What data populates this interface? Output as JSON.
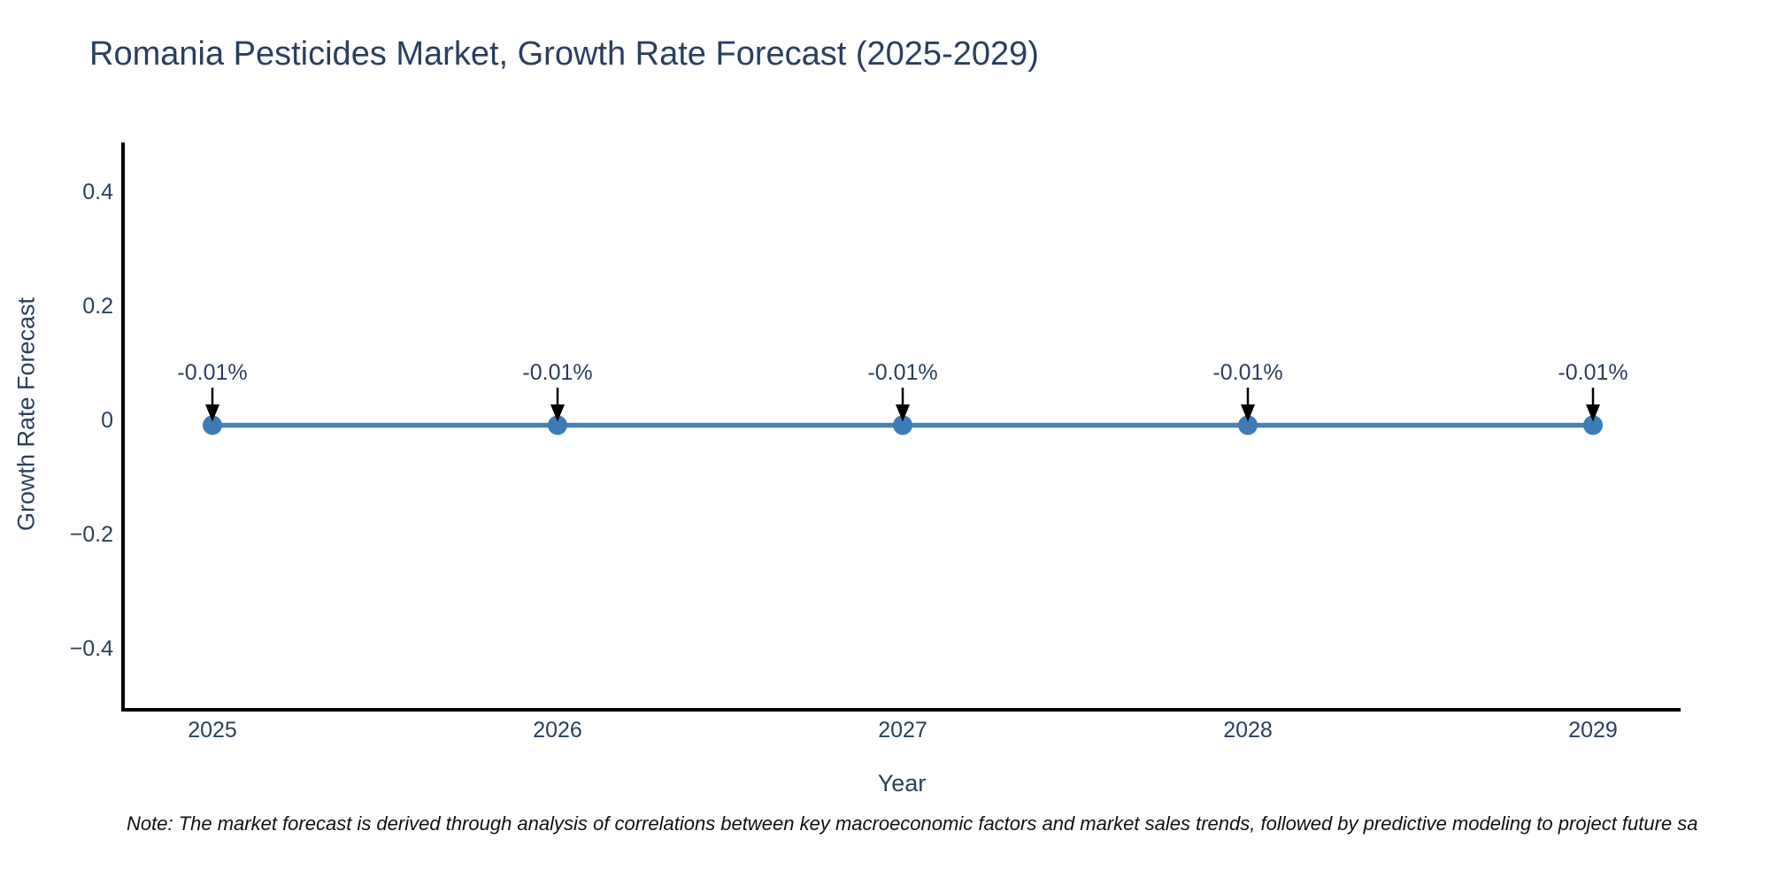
{
  "page": {
    "note": "Note: The market forecast is derived through analysis of correlations between key macroeconomic factors and market sales trends, followed by predictive modeling to project future sa"
  },
  "chart_data": {
    "type": "line",
    "title": "Romania Pesticides Market, Growth Rate Forecast (2025-2029)",
    "xlabel": "Year",
    "ylabel": "Growth Rate Forecast",
    "x": [
      2025,
      2026,
      2027,
      2028,
      2029
    ],
    "series": [
      {
        "name": "Growth Rate Forecast",
        "values": [
          -0.01,
          -0.01,
          -0.01,
          -0.01,
          -0.01
        ]
      }
    ],
    "point_labels": [
      "-0.01%",
      "-0.01%",
      "-0.01%",
      "-0.01%",
      "-0.01%"
    ],
    "xticks": [
      "2025",
      "2026",
      "2027",
      "2028",
      "2029"
    ],
    "yticks": [
      0.4,
      0.2,
      0,
      -0.2,
      -0.4
    ],
    "ytick_labels": [
      "0.4",
      "0.2",
      "0",
      "−0.2",
      "−0.4"
    ],
    "xlim": [
      2024.74,
      2029.25
    ],
    "ylim": [
      -0.51,
      0.49
    ],
    "grid": false,
    "legend": false,
    "annotation_style": "down-arrow",
    "colors": {
      "line": "#4a80b2",
      "marker": "#3e7cb9",
      "axis_line": "#000000",
      "text": "#2a3f5f",
      "arrow": "#000000",
      "note_text": "#111111",
      "background": "#ffffff"
    }
  }
}
